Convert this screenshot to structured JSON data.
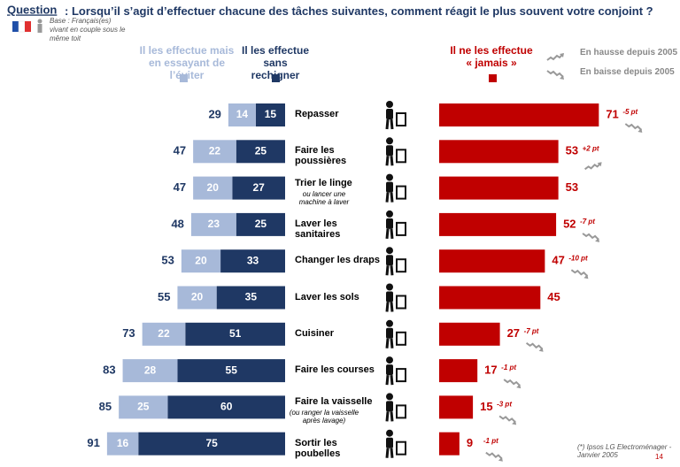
{
  "chart_data": {
    "type": "butterfly",
    "title_label": "Question",
    "title": ": Lorsqu’il s’agit d’effectuer chacune des tâches suivantes, comment réagit le plus souvent votre conjoint ?",
    "base_note": "Base : Français(es) vivant en couple sous le même toit",
    "categories": [
      "Repasser",
      "Faire les poussières",
      "Trier le linge",
      "Laver les sanitaires",
      "Changer les draps",
      "Laver les sols",
      "Cuisiner",
      "Faire les courses",
      "Faire la vaisselle",
      "Sortir les poubelles"
    ],
    "category_notes": [
      null,
      null,
      "ou lancer une machine à laver",
      null,
      null,
      null,
      null,
      null,
      "(ou ranger la vaisselle après lavage)",
      null
    ],
    "series": [
      {
        "name": "Il les effectue mais en essayant de l’éviter",
        "color": "#a7b9d9",
        "values": [
          14,
          22,
          20,
          23,
          20,
          20,
          22,
          28,
          25,
          16
        ]
      },
      {
        "name": "Il les effectue sans rechigner",
        "color": "#1f3864",
        "values": [
          15,
          25,
          27,
          25,
          33,
          35,
          51,
          55,
          60,
          75
        ]
      },
      {
        "name": "Il ne les effectue « jamais »",
        "color": "#c00000",
        "values": [
          71,
          53,
          53,
          52,
          47,
          45,
          27,
          17,
          15,
          9
        ]
      }
    ],
    "totals": [
      29,
      47,
      47,
      48,
      53,
      55,
      73,
      83,
      85,
      91
    ],
    "changes": [
      {
        "value": -5,
        "label": "-5 pt"
      },
      {
        "value": 2,
        "label": "+2 pt"
      },
      null,
      {
        "value": -7,
        "label": "-7 pt"
      },
      {
        "value": -10,
        "label": "-10 pt"
      },
      null,
      {
        "value": -7,
        "label": "-7 pt"
      },
      {
        "value": -1,
        "label": "-1 pt"
      },
      {
        "value": -3,
        "label": "-3 pt"
      },
      {
        "value": -1,
        "label": "-1 pt"
      }
    ],
    "trend_legend": [
      "En hausse depuis 2005",
      "En baisse depuis 2005"
    ],
    "footnote": "(*) Ipsos LG Electroménager - Janvier 2005",
    "page_number": "14"
  }
}
